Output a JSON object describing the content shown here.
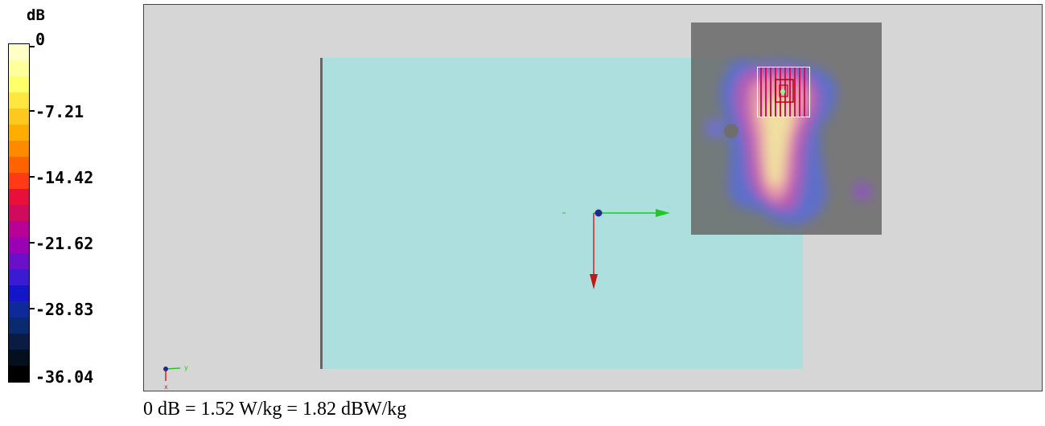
{
  "legend": {
    "unit": "dB",
    "ticks": [
      "0",
      "-7.21",
      "-14.42",
      "-21.62",
      "-28.83",
      "-36.04"
    ],
    "colors": [
      "#ffffc8",
      "#ffff9b",
      "#ffff6a",
      "#ffe640",
      "#ffc81e",
      "#ffad00",
      "#ff8a00",
      "#ff6200",
      "#ff3a14",
      "#e8103a",
      "#d00a5c",
      "#b90096",
      "#9a00b4",
      "#6a10c8",
      "#3a1ad2",
      "#1414c8",
      "#0e2a9a",
      "#0a2a70",
      "#0a1c44",
      "#05101e",
      "#000000"
    ]
  },
  "viewport": {
    "colors": {
      "background": "#d6d6d6",
      "phantom": "#addfdf",
      "scan_area": "#6e6e6e"
    },
    "axes": {
      "x_arrow_color": "#d82020",
      "y_arrow_color": "#22c822",
      "origin_color": "#1c2a8c"
    },
    "mini_axes_labels": {
      "y": "y",
      "x": "x"
    }
  },
  "caption": "0 dB = 1.52 W/kg = 1.82 dBW/kg"
}
